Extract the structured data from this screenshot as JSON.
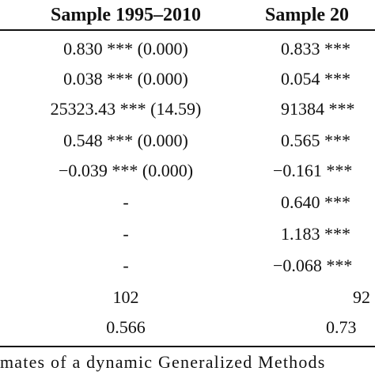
{
  "table": {
    "headers": [
      "Sample 1995–2010",
      "Sample 20"
    ],
    "rows": [
      {
        "col1": "0.830 *** (0.000)",
        "col2": "0.833 ***"
      },
      {
        "col1": "0.038 *** (0.000)",
        "col2": "0.054 ***"
      },
      {
        "col1": "25323.43 *** (14.59)",
        "col2": "91384 ***"
      },
      {
        "col1": "0.548 *** (0.000)",
        "col2": "0.565 ***"
      },
      {
        "col1": "−0.039 *** (0.000)",
        "col2": "−0.161 ***"
      },
      {
        "col1": "-",
        "col2": "0.640 ***"
      },
      {
        "col1": "-",
        "col2": "1.183 ***"
      },
      {
        "col1": "-",
        "col2": "−0.068 ***"
      },
      {
        "col1": "102",
        "col2": "92"
      },
      {
        "col1": "0.566",
        "col2": "0.73"
      }
    ]
  },
  "note": "mates of a dynamic Generalized Methods"
}
